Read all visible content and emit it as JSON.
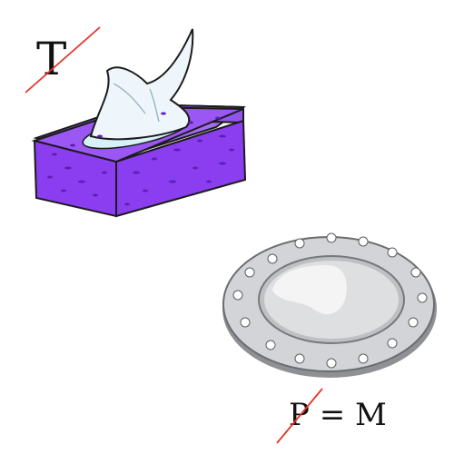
{
  "puzzle": {
    "top_letter": "T",
    "equation": {
      "removed_letter": "P",
      "equals": "=",
      "replacement": "M"
    }
  },
  "pictures": {
    "first": "tissue-box",
    "second": "plate"
  },
  "colors": {
    "strike": "#e2342c",
    "box_purple": "#8b3df0",
    "box_dots": "#5c1fb5",
    "tissue": "#eef6fb",
    "plate_rim": "#c9cacd",
    "plate_center": "#d8d9db"
  }
}
